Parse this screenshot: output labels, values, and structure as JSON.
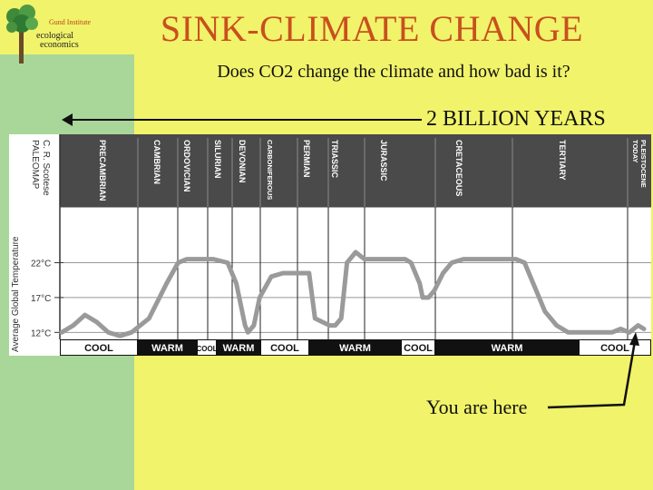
{
  "logo": {
    "line1": "Gund Institute",
    "line2": "ecological",
    "line3": "economics"
  },
  "title": "SINK-CLIMATE CHANGE",
  "subtitle": "Does CO2 change the climate and how bad is it?",
  "timescale_label": "2 BILLION YEARS",
  "pointer_label": "You are here",
  "chart_data": {
    "type": "line",
    "credit": [
      "C. R. Scotese",
      "PALEOMAP"
    ],
    "ylabel": "Average Global Temperature",
    "yticks": [
      "22°C",
      "17°C",
      "12°C"
    ],
    "ylim": [
      11,
      30
    ],
    "periods": [
      "PRECAMBRIAN",
      "CAMBRIAN",
      "ORDOVICIAN",
      "SILURIAN",
      "DEVONIAN",
      "CARBONIFEROUS",
      "PERMIAN",
      "TRIASSIC",
      "JURASSIC",
      "CRETACEOUS",
      "TERTIARY",
      "TODAY PLEISTOCENE"
    ],
    "climate_states": [
      "COOL",
      "WARM",
      "COOL",
      "WARM",
      "COOL",
      "WARM",
      "COOL",
      "WARM",
      "COOL"
    ],
    "series": [
      {
        "x": [
          0,
          2,
          4,
          6,
          8,
          10,
          12,
          15,
          18,
          20,
          21.5,
          23.5,
          26,
          28.5,
          30,
          31.5,
          32,
          33,
          34,
          36,
          38,
          39,
          41,
          42.5,
          43.5,
          46,
          47,
          48,
          49,
          50.5,
          52,
          53,
          55,
          57,
          59,
          60,
          61.5,
          62,
          63,
          64,
          65.5,
          67,
          69,
          71,
          72.5,
          74,
          76,
          78,
          79.5,
          81,
          83,
          85,
          87,
          89,
          91,
          93,
          94.5,
          96,
          97.5,
          99,
          100
        ],
        "y": [
          12,
          13,
          14.5,
          13.5,
          12,
          11.5,
          12,
          14,
          19,
          22,
          22.5,
          22.5,
          22.5,
          22,
          19,
          13,
          12,
          13,
          17,
          20,
          20.5,
          20.5,
          20.5,
          20.5,
          14,
          13,
          13,
          14,
          22,
          23.5,
          22.5,
          22.5,
          22.5,
          22.5,
          22.5,
          22,
          19,
          17,
          17,
          18,
          20.5,
          22,
          22.5,
          22.5,
          22.5,
          22.5,
          22.5,
          22.5,
          22,
          19,
          15,
          13,
          12,
          12,
          12,
          12,
          12,
          12.5,
          12,
          13,
          12.5
        ]
      }
    ]
  }
}
